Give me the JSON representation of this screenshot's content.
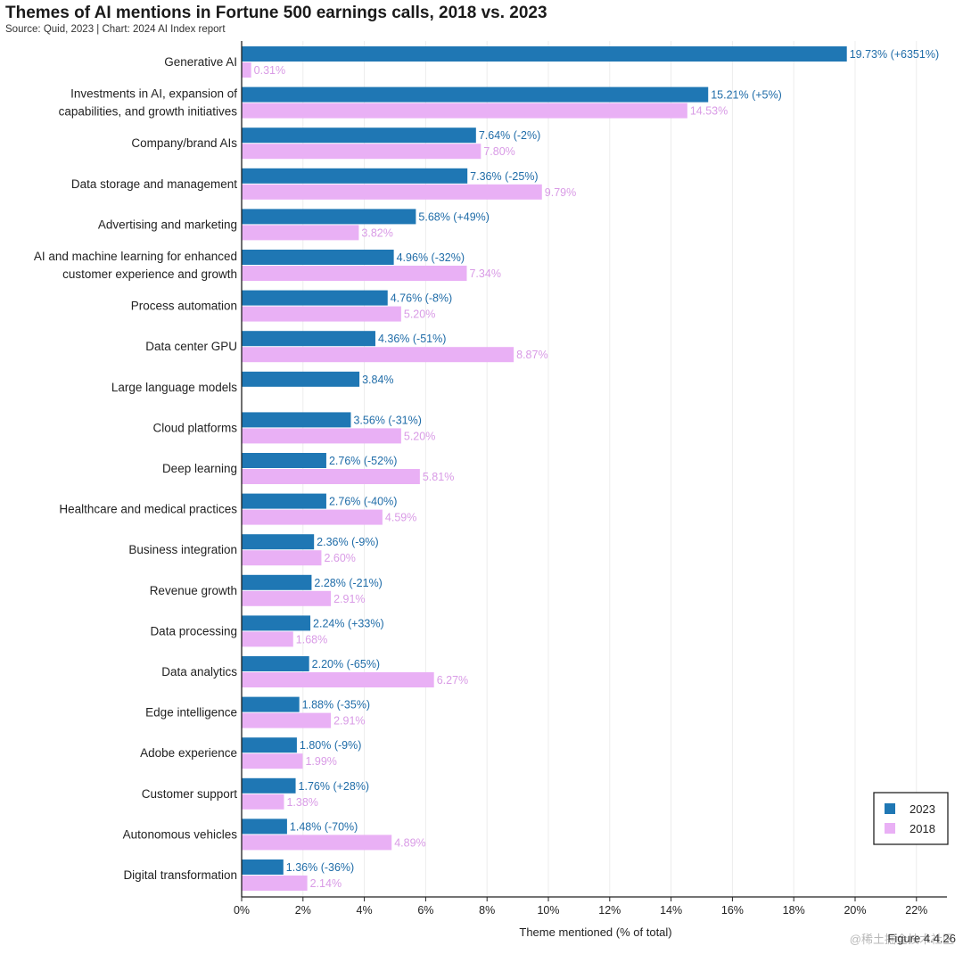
{
  "header": {
    "title": "Themes of AI mentions in Fortune 500 earnings calls, 2018 vs. 2023",
    "source": "Source: Quid, 2023 | Chart: 2024 AI Index report"
  },
  "footer": {
    "figure": "Figure 4.4.26",
    "watermark": "@稀土掘金技术社区"
  },
  "colors": {
    "s2023": "#1f77b4",
    "s2018": "#e9b0f5",
    "label2023": "#1f6ca8",
    "label2018": "#d99be6",
    "grid": "#ececec"
  },
  "chart_data": {
    "type": "bar",
    "orientation": "horizontal",
    "title": "Themes of AI mentions in Fortune 500 earnings calls, 2018 vs. 2023",
    "subtitle": "Source: Quid, 2023 | Chart: 2024 AI Index report",
    "xlabel": "Theme mentioned (% of total)",
    "ylabel": "",
    "xlim": [
      0,
      22.5
    ],
    "xticks": [
      0,
      2,
      4,
      6,
      8,
      10,
      12,
      14,
      16,
      18,
      20,
      22
    ],
    "xtick_labels": [
      "0%",
      "2%",
      "4%",
      "6%",
      "8%",
      "10%",
      "12%",
      "14%",
      "16%",
      "18%",
      "20%",
      "22%"
    ],
    "grid": true,
    "legend_position": "bottom-right",
    "categories": [
      [
        "Generative AI"
      ],
      [
        "Investments in AI, expansion of",
        "capabilities, and growth initiatives"
      ],
      [
        "Company/brand AIs"
      ],
      [
        "Data storage and management"
      ],
      [
        "Advertising and marketing"
      ],
      [
        "AI and machine learning for enhanced",
        "customer experience and growth"
      ],
      [
        "Process automation"
      ],
      [
        "Data center GPU"
      ],
      [
        "Large language models"
      ],
      [
        "Cloud platforms"
      ],
      [
        "Deep learning"
      ],
      [
        "Healthcare and medical practices"
      ],
      [
        "Business integration"
      ],
      [
        "Revenue growth"
      ],
      [
        "Data processing"
      ],
      [
        "Data analytics"
      ],
      [
        "Edge intelligence"
      ],
      [
        "Adobe experience"
      ],
      [
        "Customer support"
      ],
      [
        "Autonomous vehicles"
      ],
      [
        "Digital transformation"
      ]
    ],
    "series": [
      {
        "name": "2023",
        "values": [
          19.73,
          15.21,
          7.64,
          7.36,
          5.68,
          4.96,
          4.76,
          4.36,
          3.84,
          3.56,
          2.76,
          2.76,
          2.36,
          2.28,
          2.24,
          2.2,
          1.88,
          1.8,
          1.76,
          1.48,
          1.36
        ],
        "labels": [
          "19.73% (+6351%)",
          "15.21% (+5%)",
          "7.64% (-2%)",
          "7.36% (-25%)",
          "5.68% (+49%)",
          "4.96% (-32%)",
          "4.76% (-8%)",
          "4.36% (-51%)",
          "3.84%",
          "3.56% (-31%)",
          "2.76% (-52%)",
          "2.76% (-40%)",
          "2.36% (-9%)",
          "2.28% (-21%)",
          "2.24% (+33%)",
          "2.20% (-65%)",
          "1.88% (-35%)",
          "1.80% (-9%)",
          "1.76% (+28%)",
          "1.48% (-70%)",
          "1.36% (-36%)"
        ]
      },
      {
        "name": "2018",
        "values": [
          0.31,
          14.53,
          7.8,
          9.79,
          3.82,
          7.34,
          5.2,
          8.87,
          null,
          5.2,
          5.81,
          4.59,
          2.6,
          2.91,
          1.68,
          6.27,
          2.91,
          1.99,
          1.38,
          4.89,
          2.14
        ],
        "labels": [
          "0.31%",
          "14.53%",
          "7.80%",
          "9.79%",
          "3.82%",
          "7.34%",
          "5.20%",
          "8.87%",
          "",
          "5.20%",
          "5.81%",
          "4.59%",
          "2.60%",
          "2.91%",
          "1.68%",
          "6.27%",
          "2.91%",
          "1.99%",
          "1.38%",
          "4.89%",
          "2.14%"
        ]
      }
    ]
  }
}
